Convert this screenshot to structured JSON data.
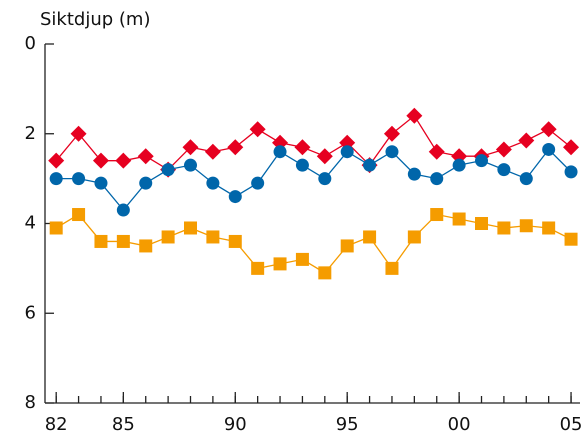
{
  "chart_data": {
    "type": "line",
    "title": "Siktdjup (m)",
    "x": [
      1982,
      1983,
      1984,
      1985,
      1986,
      1987,
      1988,
      1989,
      1990,
      1991,
      1992,
      1993,
      1994,
      1995,
      1996,
      1997,
      1998,
      1999,
      2000,
      2001,
      2002,
      2003,
      2004,
      2005
    ],
    "series": [
      {
        "color": "#e60020",
        "marker": "diamond",
        "values": [
          2.6,
          2.0,
          2.6,
          2.6,
          2.5,
          2.8,
          2.3,
          2.4,
          2.3,
          1.9,
          2.2,
          2.3,
          2.5,
          2.2,
          2.7,
          2.0,
          1.6,
          2.4,
          2.5,
          2.5,
          2.35,
          2.15,
          1.9,
          2.3
        ]
      },
      {
        "color": "#0066aa",
        "marker": "circle",
        "values": [
          3.0,
          3.0,
          3.1,
          3.7,
          3.1,
          2.8,
          2.7,
          3.1,
          3.4,
          3.1,
          2.4,
          2.7,
          3.0,
          2.4,
          2.7,
          2.4,
          2.9,
          3.0,
          2.7,
          2.6,
          2.8,
          3.0,
          2.35,
          2.85
        ]
      },
      {
        "color": "#f59c00",
        "marker": "square",
        "values": [
          4.1,
          3.8,
          4.4,
          4.4,
          4.5,
          4.3,
          4.1,
          4.3,
          4.4,
          5.0,
          4.9,
          4.8,
          5.1,
          4.5,
          4.3,
          5.0,
          4.3,
          3.8,
          3.9,
          4.0,
          4.1,
          4.05,
          4.1,
          4.35
        ]
      }
    ],
    "xlim": [
      1981.5,
      2005.4
    ],
    "xticks": [
      {
        "value": 1982,
        "label": "82"
      },
      {
        "value": 1985,
        "label": "85"
      },
      {
        "value": 1990,
        "label": "90"
      },
      {
        "value": 1995,
        "label": "95"
      },
      {
        "value": 2000,
        "label": "00"
      },
      {
        "value": 2005,
        "label": "05"
      }
    ],
    "ylim": [
      0,
      8
    ],
    "yticks": [
      0,
      2,
      4,
      6,
      8
    ],
    "y_inverted": true,
    "grid": false
  }
}
